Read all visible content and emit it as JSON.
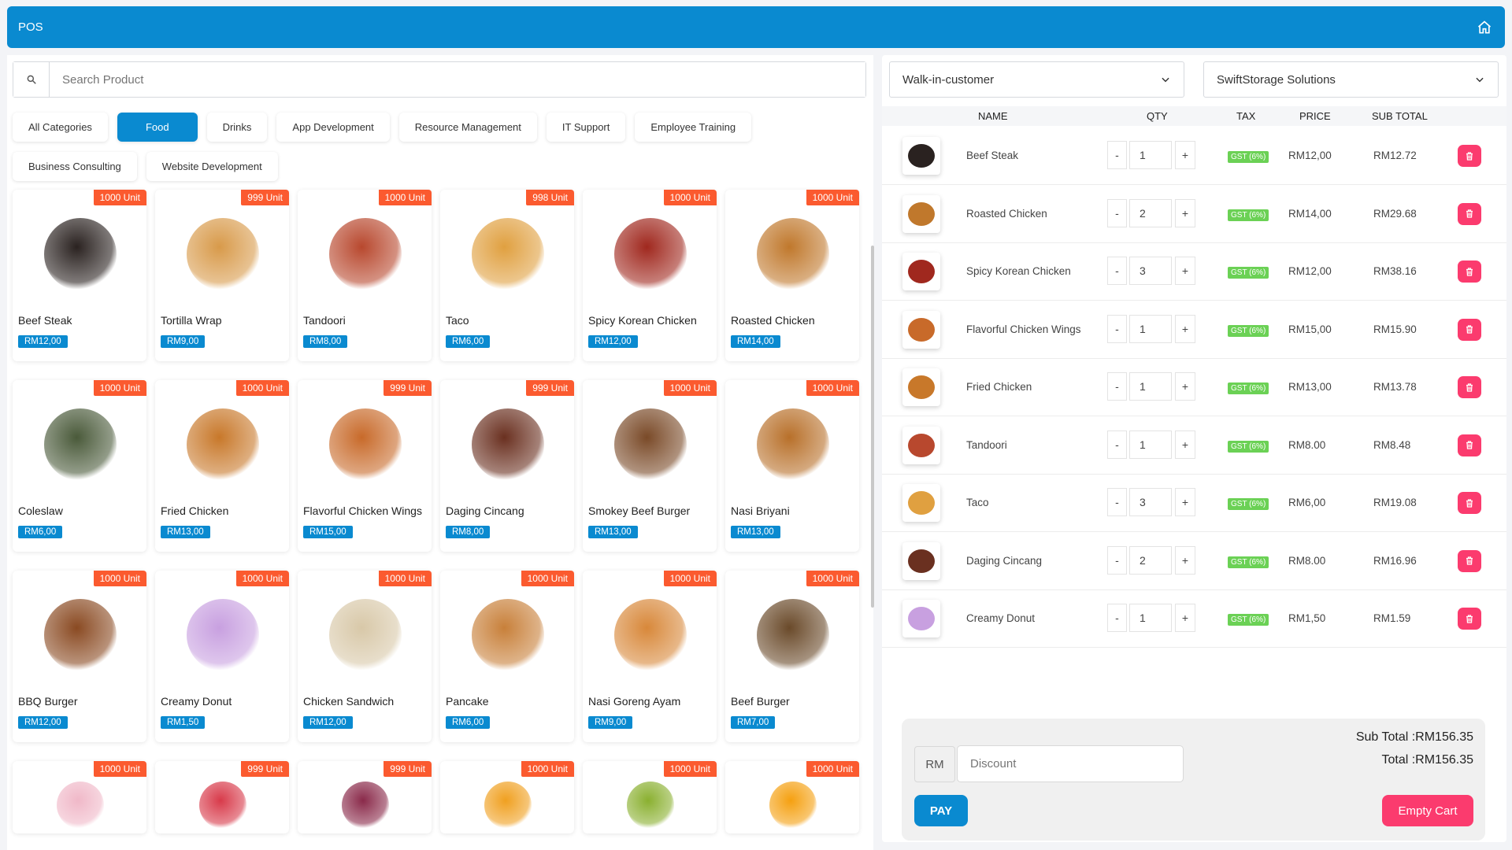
{
  "header": {
    "title": "POS",
    "home_icon": "home-icon"
  },
  "search": {
    "placeholder": "Search Product",
    "icon": "search-icon"
  },
  "categories": [
    {
      "label": "All Categories",
      "active": false
    },
    {
      "label": "Food",
      "active": true
    },
    {
      "label": "Drinks",
      "active": false
    },
    {
      "label": "App Development",
      "active": false
    },
    {
      "label": "Resource Management",
      "active": false
    },
    {
      "label": "IT Support",
      "active": false
    },
    {
      "label": "Employee Training",
      "active": false
    },
    {
      "label": "Business Consulting",
      "active": false
    },
    {
      "label": "Website Development",
      "active": false
    }
  ],
  "products": [
    {
      "name": "Beef Steak",
      "price": "RM12,00",
      "stock": "1000 Unit",
      "color": "#2a2220"
    },
    {
      "name": "Tortilla Wrap",
      "price": "RM9,00",
      "stock": "999 Unit",
      "color": "#d89a4a"
    },
    {
      "name": "Tandoori",
      "price": "RM8,00",
      "stock": "1000 Unit",
      "color": "#b8482e"
    },
    {
      "name": "Taco",
      "price": "RM6,00",
      "stock": "998 Unit",
      "color": "#e0a040"
    },
    {
      "name": "Spicy Korean Chicken",
      "price": "RM12,00",
      "stock": "1000 Unit",
      "color": "#a0281e"
    },
    {
      "name": "Roasted Chicken",
      "price": "RM14,00",
      "stock": "1000 Unit",
      "color": "#c0782c"
    },
    {
      "name": "Coleslaw",
      "price": "RM6,00",
      "stock": "1000 Unit",
      "color": "#4a5a3a"
    },
    {
      "name": "Fried Chicken",
      "price": "RM13,00",
      "stock": "1000 Unit",
      "color": "#c8782a"
    },
    {
      "name": "Flavorful Chicken Wings",
      "price": "RM15,00",
      "stock": "999 Unit",
      "color": "#c86a2a"
    },
    {
      "name": "Daging Cincang",
      "price": "RM8,00",
      "stock": "999 Unit",
      "color": "#6a3020"
    },
    {
      "name": "Smokey Beef Burger",
      "price": "RM13,00",
      "stock": "1000 Unit",
      "color": "#7a4a28"
    },
    {
      "name": "Nasi Briyani",
      "price": "RM13,00",
      "stock": "1000 Unit",
      "color": "#b8702a"
    },
    {
      "name": "BBQ Burger",
      "price": "RM12,00",
      "stock": "1000 Unit",
      "color": "#8a4a22"
    },
    {
      "name": "Creamy Donut",
      "price": "RM1,50",
      "stock": "1000 Unit",
      "color": "#c8a0e0"
    },
    {
      "name": "Chicken Sandwich",
      "price": "RM12,00",
      "stock": "1000 Unit",
      "color": "#d8c8a8"
    },
    {
      "name": "Pancake",
      "price": "RM6,00",
      "stock": "1000 Unit",
      "color": "#c8803a"
    },
    {
      "name": "Nasi Goreng Ayam",
      "price": "RM9,00",
      "stock": "1000 Unit",
      "color": "#d8883a"
    },
    {
      "name": "Beef Burger",
      "price": "RM7,00",
      "stock": "1000 Unit",
      "color": "#6a4a2a"
    },
    {
      "name": "",
      "price": "",
      "stock": "1000 Unit",
      "color": "#f0b8c8"
    },
    {
      "name": "",
      "price": "",
      "stock": "999 Unit",
      "color": "#d83a4a"
    },
    {
      "name": "",
      "price": "",
      "stock": "999 Unit",
      "color": "#8a2a4a"
    },
    {
      "name": "",
      "price": "",
      "stock": "1000 Unit",
      "color": "#f0a020"
    },
    {
      "name": "",
      "price": "",
      "stock": "1000 Unit",
      "color": "#8ab030"
    },
    {
      "name": "",
      "price": "",
      "stock": "1000 Unit",
      "color": "#f5a010"
    }
  ],
  "customer": {
    "selected": "Walk-in-customer"
  },
  "store": {
    "selected": "SwiftStorage Solutions"
  },
  "cart": {
    "columns": {
      "name": "NAME",
      "qty": "QTY",
      "tax": "TAX",
      "price": "PRICE",
      "subtotal": "SUB TOTAL"
    },
    "minus": "-",
    "plus": "+",
    "items": [
      {
        "name": "Beef Steak",
        "qty": "1",
        "tax": "GST (6%)",
        "price": "RM12,00",
        "subtotal": "RM12.72",
        "color": "#2a2220"
      },
      {
        "name": "Roasted Chicken",
        "qty": "2",
        "tax": "GST (6%)",
        "price": "RM14,00",
        "subtotal": "RM29.68",
        "color": "#c0782c"
      },
      {
        "name": "Spicy Korean Chicken",
        "qty": "3",
        "tax": "GST (6%)",
        "price": "RM12,00",
        "subtotal": "RM38.16",
        "color": "#a0281e"
      },
      {
        "name": "Flavorful Chicken Wings",
        "qty": "1",
        "tax": "GST (6%)",
        "price": "RM15,00",
        "subtotal": "RM15.90",
        "color": "#c86a2a"
      },
      {
        "name": "Fried Chicken",
        "qty": "1",
        "tax": "GST (6%)",
        "price": "RM13,00",
        "subtotal": "RM13.78",
        "color": "#c8782a"
      },
      {
        "name": "Tandoori",
        "qty": "1",
        "tax": "GST (6%)",
        "price": "RM8.00",
        "subtotal": "RM8.48",
        "color": "#b8482e"
      },
      {
        "name": "Taco",
        "qty": "3",
        "tax": "GST (6%)",
        "price": "RM6,00",
        "subtotal": "RM19.08",
        "color": "#e0a040"
      },
      {
        "name": "Daging Cincang",
        "qty": "2",
        "tax": "GST (6%)",
        "price": "RM8.00",
        "subtotal": "RM16.96",
        "color": "#6a3020"
      },
      {
        "name": "Creamy Donut",
        "qty": "1",
        "tax": "GST (6%)",
        "price": "RM1,50",
        "subtotal": "RM1.59",
        "color": "#c8a0e0"
      }
    ]
  },
  "summary": {
    "currency": "RM",
    "discount_placeholder": "Discount",
    "sub_total": "Sub Total :RM156.35",
    "total": "Total :RM156.35",
    "pay": "PAY",
    "empty_cart": "Empty Cart"
  },
  "colors": {
    "primary": "#0a8ad0",
    "stock_badge": "#fb5a2f",
    "danger": "#fb3b6e",
    "tax_badge": "#6bd155"
  }
}
